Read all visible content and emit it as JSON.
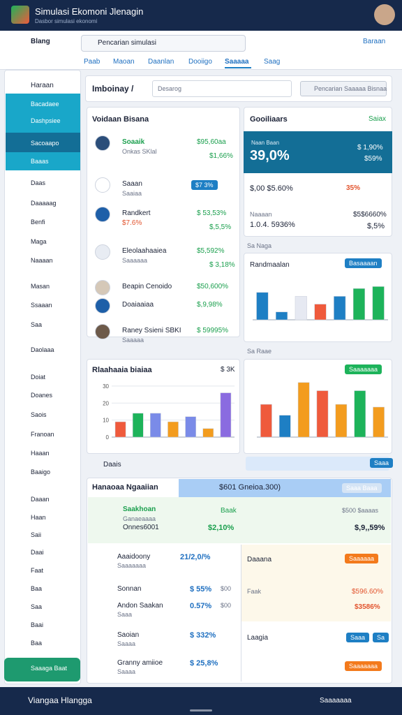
{
  "header": {
    "title": "Simulasi Ekomoni Jlenagin",
    "subtitle": "Dasbor simulasi ekonomi"
  },
  "toolbar": {
    "label": "Blang",
    "search": "Pencarian simulasi",
    "button": "Baraan"
  },
  "tabs": [
    "Paab",
    "Maoan",
    "Daanlan",
    "Dooiigo",
    "Saaaaa",
    "Saag"
  ],
  "sidebar": {
    "top": "Haraan",
    "items": [
      "Bacadaee",
      "Dashpsiee",
      "Sacoaapo",
      "Baaas",
      "Daas",
      "Daaaaag",
      "Benfi",
      "Maga",
      "Naaaan",
      "Masan",
      "Ssaaan",
      "Saa",
      "Daolaaa",
      "Doiat",
      "Doanes",
      "Saois",
      "Franoan",
      "Haaan",
      "Baaigo",
      "Daaan",
      "Haan",
      "Saii",
      "Daai",
      "Faat",
      "Baa",
      "Saa",
      "Baai",
      "Baa"
    ],
    "bottom": "Saaaga Baat"
  },
  "breadcrumb": {
    "title": "Imboinay /",
    "input": "Desarog",
    "select": "Pencarian Saaaaa Bisnaa"
  },
  "left_panel": {
    "title": "Voidaan Bisana",
    "rows": [
      {
        "name": "Soaaik",
        "sub": "Onkas SKlal",
        "value": "$95,60aa",
        "change": "$1,66%"
      },
      {
        "name": "Saaan",
        "sub": "Saaiaa",
        "value": "$7 3%"
      },
      {
        "name": "Randkert",
        "sub": "$7.6%",
        "value": "$ 53,53%",
        "change": "$,5,5%"
      },
      {
        "name": "Eleolaahaaiea",
        "sub": "Saaaaaa",
        "value": "$5,592%",
        "change": "$ 3,18%"
      },
      {
        "name": "Beapin Cenoido",
        "value": "$50,600%"
      },
      {
        "name": "Doaiaaiaa",
        "value": "$,9,98%"
      },
      {
        "name": "Raney Ssieni SBKI",
        "sub": "Saaaaa",
        "value": "$ 59995%"
      }
    ]
  },
  "right_panel": {
    "title": "Gooiliaars",
    "link": "Saiax",
    "card_label": "Naan Baan",
    "card_value": "39,0%",
    "card_a": "$ 1,90%",
    "card_b": "$59%",
    "row1": "$,00 $5.60%",
    "row1_badge": "35%",
    "row2_label": "Naaaan",
    "row2_value": "1.0.4. 5936%",
    "row2_a": "$5$6660%",
    "row2_b": "$,5%"
  },
  "charts": [
    {
      "type": "bar",
      "section": "Sa Naga",
      "title": "Randmaalan",
      "button": "Basaaaan",
      "categories": [
        null,
        null,
        null,
        null,
        null,
        null,
        null
      ],
      "values": [
        70,
        20,
        60,
        40,
        60,
        80,
        85
      ],
      "colors": [
        "#1e7fc4",
        "#1e7fc4",
        "#e6e9f2",
        "#ef5a3c",
        "#1e7fc4",
        "#1db35a",
        "#1db35a"
      ],
      "ylim": [
        0,
        100
      ]
    },
    {
      "type": "bar",
      "title": "Rlaahaaia biaiaa",
      "badge": "$ 3K",
      "categories": [
        null,
        null,
        null,
        null,
        null,
        null,
        null
      ],
      "values": [
        9,
        14,
        14,
        9,
        12,
        5,
        26
      ],
      "colors": [
        "#ef5a3c",
        "#1db35a",
        "#7a8be8",
        "#f39c1e",
        "#7a8be8",
        "#f39c1e",
        "#8a6be0"
      ],
      "ylim": [
        0,
        32
      ],
      "yticks": [
        0,
        10,
        20,
        30
      ]
    },
    {
      "type": "bar",
      "section": "Sa Raae",
      "button": "Saaaaaaa",
      "categories": [
        null,
        null,
        null,
        null,
        null,
        null,
        null
      ],
      "values": [
        60,
        40,
        100,
        85,
        60,
        85,
        55
      ],
      "colors": [
        "#ef5a3c",
        "#1e7fc4",
        "#f39c1e",
        "#ef5a3c",
        "#f39c1e",
        "#1db35a",
        "#f39c1e"
      ],
      "ylim": [
        0,
        110
      ]
    }
  ],
  "search_row": {
    "label": "Daais",
    "button": "Saaa"
  },
  "big_panel": {
    "title": "Hanaoaa Ngaaiian",
    "highlight": "$601 Gneioa.300)",
    "button": "Saaa Baaa",
    "user": "Saakhoan",
    "user_sub": "Ganaeaaaa",
    "user_id": "Onnes6001",
    "col": "Baak",
    "col_value": "$2,10%",
    "right_label": "$500 $aaaas",
    "right_value": "$,9,,59%"
  },
  "lower_left": [
    {
      "name": "Aaaidoony",
      "sub": "Saaaaaaa",
      "value": "21/2,0/%"
    },
    {
      "name": "Sonnan",
      "value": "$ 55%",
      "extra": "$00"
    },
    {
      "name": "Andon Saakan",
      "sub": "Saaa",
      "value": "0.57%",
      "extra": "$00"
    },
    {
      "name": "Saoian",
      "sub": "Saaaa",
      "value": "$ 332%"
    },
    {
      "name": "Granny amiioe",
      "sub": "Saaaa",
      "value": "$ 25,8%"
    }
  ],
  "lower_right": {
    "title": "Daaana",
    "button": "Saaaaaa",
    "label": "Faak",
    "value": "$596.60%",
    "value2": "$3586%",
    "label2": "Laagia",
    "btn_a": "Saaa",
    "btn_b": "Sa",
    "btn_c": "Saaaaaaa"
  },
  "footer": {
    "title": "Viangaa Hlangga",
    "label": "Saaaaaaa"
  }
}
